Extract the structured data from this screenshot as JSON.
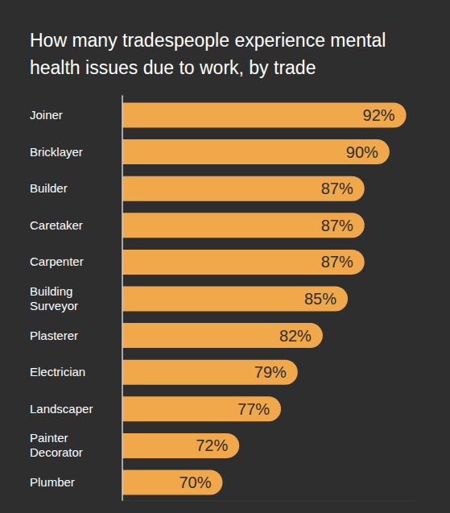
{
  "chart_data": {
    "type": "bar",
    "title": "How many tradespeople experience mental health issues due to work, by trade",
    "orientation": "horizontal",
    "categories": [
      "Joiner",
      "Bricklayer",
      "Builder",
      "Caretaker",
      "Carpenter",
      "Building Surveyor",
      "Plasterer",
      "Electrician",
      "Landscaper",
      "Painter Decorator",
      "Plumber"
    ],
    "values": [
      92,
      90,
      87,
      87,
      87,
      85,
      82,
      79,
      77,
      72,
      70
    ],
    "value_labels": [
      "92%",
      "90%",
      "87%",
      "87%",
      "87%",
      "85%",
      "82%",
      "79%",
      "77%",
      "72%",
      "70%"
    ],
    "color": "#f0a84b",
    "xlim": [
      58,
      93
    ],
    "grid": false,
    "data_labels": true,
    "tick_labels": false
  }
}
